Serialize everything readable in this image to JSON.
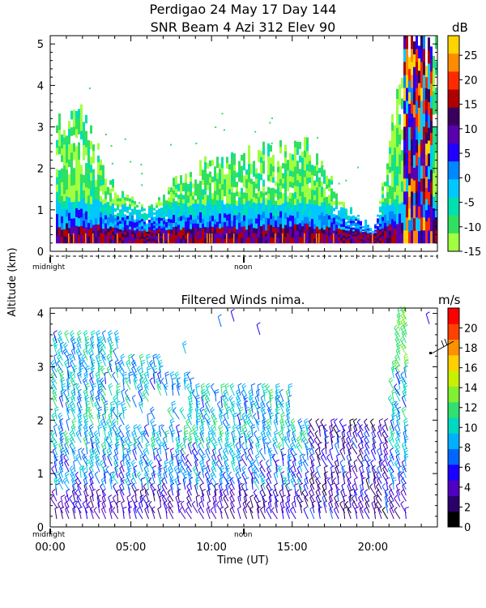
{
  "figure": {
    "title_line1": "Perdigao  24 May 17 Day 144",
    "title_line2": "SNR Beam 4 Azi 312 Elev 90",
    "ylabel": "Altitude (km)",
    "xlabel": "Time (UT)",
    "midnight_label": "midnight",
    "noon_label": "noon"
  },
  "chart_data": [
    {
      "type": "heatmap",
      "title": "SNR Beam 4 Azi 312 Elev 90",
      "ylabel": "Altitude (km)",
      "ylim": [
        0,
        5.2
      ],
      "xlim": [
        0,
        24
      ],
      "y_ticks": [
        "0",
        "1",
        "2",
        "3",
        "4",
        "5"
      ],
      "colorbar": {
        "unit": "dB",
        "range": [
          -15,
          29
        ],
        "tick_labels": [
          "25",
          "20",
          "15",
          "10",
          "5",
          "0",
          "-5",
          "-10",
          "-15"
        ],
        "colors": [
          "#ffd400",
          "#ff8c00",
          "#ff2a00",
          "#b00000",
          "#3a0060",
          "#5a00b0",
          "#2200ff",
          "#0088ff",
          "#00c8ff",
          "#00e0b0",
          "#30e060",
          "#a0ff40"
        ]
      },
      "description_profile": [
        {
          "t": 0.0,
          "layer_top_km": 2.9
        },
        {
          "t": 2.0,
          "layer_top_km": 3.2
        },
        {
          "t": 4.0,
          "layer_top_km": 1.5
        },
        {
          "t": 6.0,
          "layer_top_km": 1.0
        },
        {
          "t": 8.0,
          "layer_top_km": 1.7
        },
        {
          "t": 10.0,
          "layer_top_km": 2.1
        },
        {
          "t": 12.0,
          "layer_top_km": 2.3
        },
        {
          "t": 14.0,
          "layer_top_km": 2.5
        },
        {
          "t": 16.0,
          "layer_top_km": 2.5
        },
        {
          "t": 18.0,
          "layer_top_km": 1.2
        },
        {
          "t": 20.0,
          "layer_top_km": 0.5
        },
        {
          "t": 21.0,
          "layer_top_km": 2.7
        },
        {
          "t": 22.0,
          "layer_top_km": 5.2
        },
        {
          "t": 24.0,
          "layer_top_km": 5.2
        }
      ]
    },
    {
      "type": "scatter",
      "title": "Filtered Winds nima.",
      "ylabel": "Altitude (km)",
      "xlabel": "Time (UT)",
      "ylim": [
        0,
        4.1
      ],
      "xlim": [
        0,
        24
      ],
      "x_ticks": [
        "00:00",
        "05:00",
        "10:00",
        "15:00",
        "20:00"
      ],
      "y_ticks": [
        "0",
        "1",
        "2",
        "3",
        "4"
      ],
      "colorbar": {
        "unit": "m/s",
        "range": [
          0,
          22
        ],
        "tick_labels": [
          "20",
          "18",
          "16",
          "14",
          "12",
          "10",
          "8",
          "6",
          "4",
          "2",
          "0"
        ],
        "colors": [
          "#000000",
          "#2a006a",
          "#5000c0",
          "#1a00ff",
          "#0066ff",
          "#00b0ff",
          "#00d8c0",
          "#30e070",
          "#80f030",
          "#c8f000",
          "#ffd000",
          "#ff9000",
          "#ff4000",
          "#ff0000"
        ]
      },
      "wind_coverage": [
        {
          "t_start": 0.25,
          "t_end": 4.5,
          "top_km": 3.5
        },
        {
          "t_start": 4.5,
          "t_end": 7.0,
          "top_km": 3.1
        },
        {
          "t_start": 7.0,
          "t_end": 9.0,
          "top_km": 2.7
        },
        {
          "t_start": 9.0,
          "t_end": 14.0,
          "top_km": 2.5
        },
        {
          "t_start": 14.0,
          "t_end": 16.0,
          "top_km": 2.5
        },
        {
          "t_start": 16.0,
          "t_end": 20.0,
          "top_km": 1.9
        },
        {
          "t_start": 20.0,
          "t_end": 21.6,
          "top_km": 3.0
        },
        {
          "t_start": 21.6,
          "t_end": 22.3,
          "top_km": 3.95
        }
      ]
    }
  ]
}
